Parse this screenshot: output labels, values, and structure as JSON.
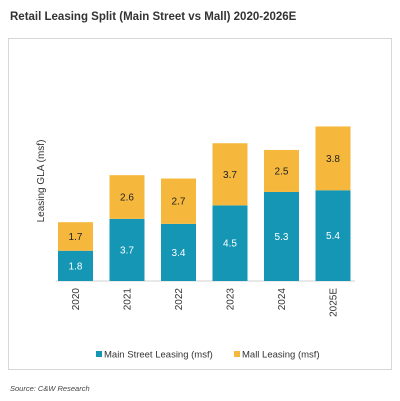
{
  "title": "Retail Leasing Split (Main Street vs Mall) 2020-2026E",
  "source": "Source: C&W Research",
  "chart_data": {
    "type": "bar",
    "stacked": true,
    "categories": [
      "2020",
      "2021",
      "2022",
      "2023",
      "2024",
      "2025E"
    ],
    "series": [
      {
        "name": "Main Street Leasing (msf)",
        "values": [
          1.8,
          3.7,
          3.4,
          4.5,
          5.3,
          5.4
        ],
        "color": "#1596b5",
        "label_color": "#ffffff"
      },
      {
        "name": "Mall Leasing (msf)",
        "values": [
          1.7,
          2.6,
          2.7,
          3.7,
          2.5,
          3.8
        ],
        "color": "#f5b83d",
        "label_color": "#222222"
      }
    ],
    "ylabel": "Leasing GLA (msf)",
    "xlabel": "",
    "legend": "bottom",
    "grid": false,
    "y_axis_visible": false,
    "ylim": [
      0,
      10
    ]
  }
}
